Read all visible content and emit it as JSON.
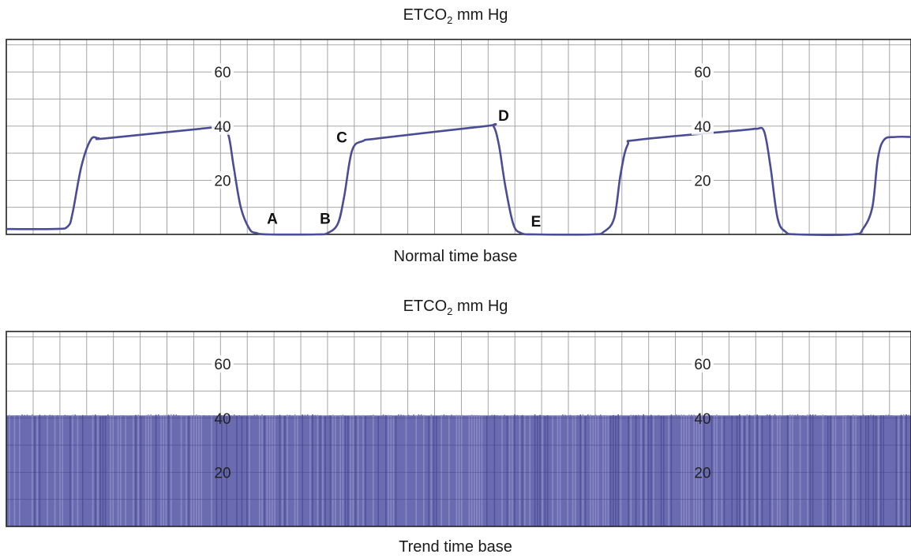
{
  "chart_data": [
    {
      "type": "line",
      "title_main": "ETCO",
      "title_sub": "2",
      "title_rest": " mm Hg",
      "caption": "Normal time base",
      "ylim": [
        0,
        72
      ],
      "yticks": [
        20,
        40,
        60
      ],
      "grid": true,
      "line_color": "#4b4c96",
      "x_range": [
        0,
        1154
      ],
      "series": [
        {
          "x": [
            0,
            70,
            86,
            92,
            103,
            115,
            125,
            135,
            270,
            283,
            290,
            296,
            305,
            316,
            325,
            340,
            400,
            415,
            428,
            436,
            446,
            460,
            480,
            615,
            625,
            632,
            640,
            650,
            660,
            680,
            750,
            765,
            778,
            786,
            795,
            810,
            940,
            958,
            968,
            976,
            985,
            995,
            1010,
            1080,
            1093,
            1105,
            1112,
            1120,
            1135,
            1154
          ],
          "values": [
            2,
            2,
            3,
            8,
            25,
            35,
            35.5,
            35.5,
            39.5,
            39.5,
            36,
            25,
            10,
            2,
            0.5,
            0,
            0,
            0.5,
            4,
            14,
            31,
            34.5,
            35.5,
            40,
            40,
            33,
            18,
            4,
            0.5,
            0,
            0,
            1,
            6,
            22,
            33,
            35,
            38.5,
            39,
            38,
            25,
            6,
            1,
            0,
            0,
            2,
            10,
            28,
            35,
            36,
            36
          ]
        }
      ],
      "annotations": [
        {
          "label": "A",
          "x": 345,
          "y": 6
        },
        {
          "label": "B",
          "x": 412,
          "y": 6
        },
        {
          "label": "C",
          "x": 433,
          "y": 36
        },
        {
          "label": "D",
          "x": 638,
          "y": 44
        },
        {
          "label": "E",
          "x": 679,
          "y": 5
        }
      ]
    },
    {
      "type": "area",
      "title_main": "ETCO",
      "title_sub": "2",
      "title_rest": " mm Hg",
      "caption": "Trend time base",
      "ylim": [
        0,
        72
      ],
      "yticks": [
        20,
        40,
        60
      ],
      "grid": true,
      "fill_color": "#6a6bb0",
      "fill_light": "#8c8dc6",
      "fill_dark": "#505199",
      "trend_level": 41,
      "x_range": [
        0,
        1154
      ]
    }
  ]
}
